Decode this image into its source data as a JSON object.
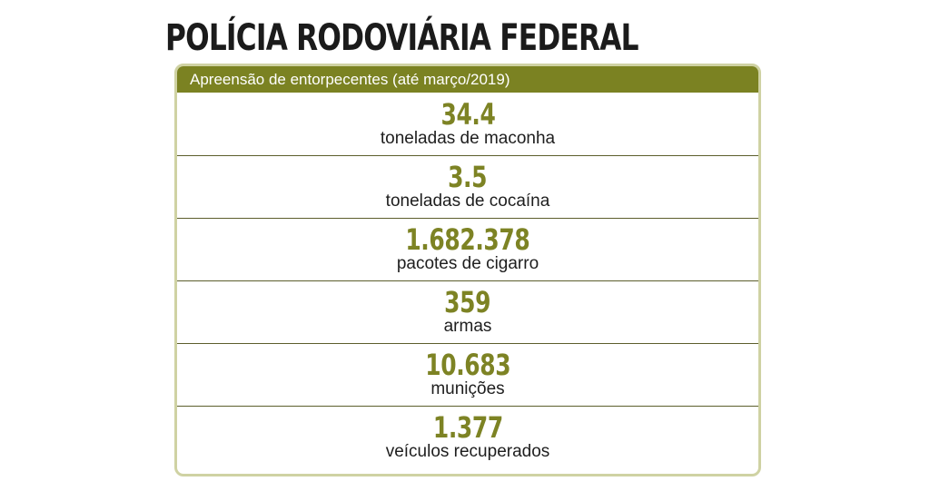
{
  "title": "POLÍCIA RODOVIÁRIA FEDERAL",
  "card": {
    "header": "Apreensão de entorpecentes (até março/2019)",
    "rows": [
      {
        "value": "34.4",
        "label": "toneladas de maconha"
      },
      {
        "value": "3.5",
        "label": "toneladas de cocaína"
      },
      {
        "value": "1.682.378",
        "label": "pacotes de cigarro"
      },
      {
        "value": "359",
        "label": "armas"
      },
      {
        "value": "10.683",
        "label": "munições"
      },
      {
        "value": "1.377",
        "label": "veículos recuperados"
      }
    ]
  },
  "colors": {
    "accent": "#7b8222",
    "value_text": "#7d8324",
    "card_border": "#cfd2a3"
  }
}
